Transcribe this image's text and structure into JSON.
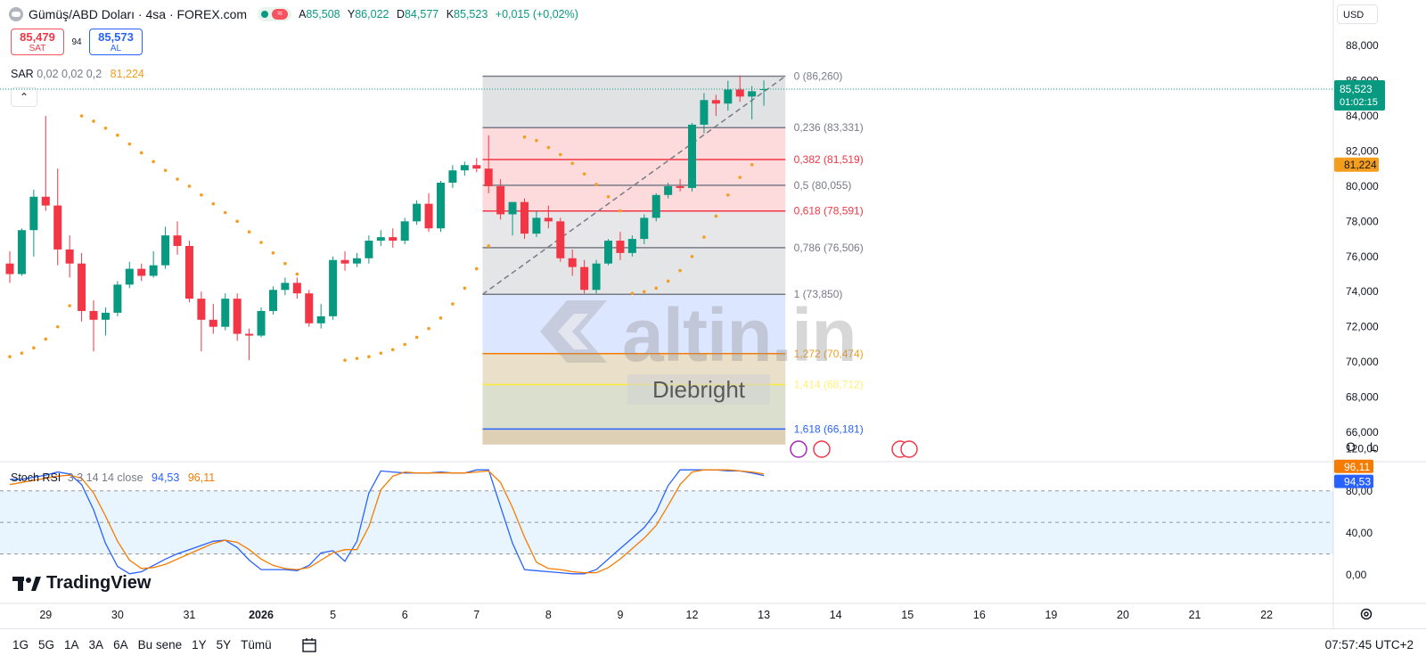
{
  "header": {
    "symbol_title": "Gümüş/ABD Doları · 4sa · FOREX.com",
    "ohlc": [
      {
        "key": "A",
        "value": "85,508"
      },
      {
        "key": "Y",
        "value": "86,022"
      },
      {
        "key": "D",
        "value": "84,577"
      },
      {
        "key": "K",
        "value": "85,523"
      }
    ],
    "change": "+0,015 (+0,02%)"
  },
  "trade": {
    "sell_price": "85,479",
    "sell_label": "SAT",
    "spread": "94",
    "buy_price": "85,573",
    "buy_label": "AL"
  },
  "sar_legend": {
    "label": "SAR",
    "params": "0,02 0,02 0,2",
    "value": "81,224"
  },
  "stoch_legend": {
    "label": "Stoch RSI",
    "params": "3 3 14 14 close",
    "k_value": "94,53",
    "d_value": "96,11"
  },
  "currency": "USD",
  "scale_buttons": {
    "o": "O",
    "l": "L"
  },
  "watermark": {
    "site": "altin.in",
    "author": "Diebright"
  },
  "brand": "TradingView",
  "time_ranges": [
    "1G",
    "5G",
    "1A",
    "3A",
    "6A",
    "Bu sene",
    "1Y",
    "5Y",
    "Tümü"
  ],
  "clock": "07:57:45 UTC+2",
  "colors": {
    "up": "#089981",
    "down": "#f23645",
    "sar": "#f59d1c",
    "stoch_k": "#2962ff",
    "stoch_d": "#f57c00"
  },
  "chart_data": {
    "type": "candlestick",
    "ylim": [
      65,
      89
    ],
    "y_ticks": [
      "66,000",
      "68,000",
      "70,000",
      "72,000",
      "74,000",
      "76,000",
      "78,000",
      "80,000",
      "82,000",
      "84,000",
      "86,000",
      "88,000"
    ],
    "x_labels": [
      {
        "label": "29",
        "bar": 3
      },
      {
        "label": "30",
        "bar": 9
      },
      {
        "label": "31",
        "bar": 15
      },
      {
        "label": "2026",
        "bar": 21
      },
      {
        "label": "5",
        "bar": 27
      },
      {
        "label": "6",
        "bar": 33
      },
      {
        "label": "7",
        "bar": 39
      },
      {
        "label": "8",
        "bar": 45
      },
      {
        "label": "9",
        "bar": 51
      },
      {
        "label": "12",
        "bar": 57
      },
      {
        "label": "13",
        "bar": 63
      },
      {
        "label": "14",
        "bar": 69
      },
      {
        "label": "15",
        "bar": 75
      },
      {
        "label": "16",
        "bar": 81
      },
      {
        "label": "19",
        "bar": 87
      },
      {
        "label": "20",
        "bar": 93
      },
      {
        "label": "21",
        "bar": 99
      },
      {
        "label": "22",
        "bar": 105
      }
    ],
    "candles": [
      [
        75.6,
        76.3,
        74.5,
        75.0
      ],
      [
        75.0,
        77.6,
        74.9,
        77.5
      ],
      [
        77.5,
        79.8,
        76.0,
        79.4
      ],
      [
        79.4,
        84.0,
        78.6,
        78.9
      ],
      [
        78.9,
        81.0,
        75.5,
        76.4
      ],
      [
        76.4,
        77.2,
        74.8,
        75.6
      ],
      [
        75.6,
        76.2,
        72.3,
        72.9
      ],
      [
        72.9,
        73.5,
        70.6,
        72.4
      ],
      [
        72.4,
        73.1,
        71.5,
        72.8
      ],
      [
        72.8,
        74.6,
        72.6,
        74.4
      ],
      [
        74.4,
        75.7,
        74.2,
        75.3
      ],
      [
        75.3,
        75.6,
        74.6,
        74.9
      ],
      [
        74.9,
        76.3,
        74.8,
        75.5
      ],
      [
        75.5,
        77.7,
        75.3,
        77.2
      ],
      [
        77.2,
        78.0,
        76.1,
        76.6
      ],
      [
        76.6,
        76.9,
        73.4,
        73.6
      ],
      [
        73.6,
        74.0,
        70.6,
        72.4
      ],
      [
        72.4,
        73.3,
        71.6,
        72.0
      ],
      [
        72.0,
        73.9,
        71.8,
        73.6
      ],
      [
        73.6,
        73.9,
        71.2,
        71.6
      ],
      [
        71.6,
        71.9,
        70.1,
        71.5
      ],
      [
        71.5,
        73.1,
        71.4,
        72.9
      ],
      [
        72.9,
        74.3,
        72.7,
        74.1
      ],
      [
        74.1,
        74.8,
        73.8,
        74.5
      ],
      [
        74.5,
        74.8,
        73.6,
        73.9
      ],
      [
        73.9,
        74.1,
        72.0,
        72.2
      ],
      [
        72.2,
        73.3,
        71.9,
        72.6
      ],
      [
        72.6,
        76.0,
        72.4,
        75.8
      ],
      [
        75.8,
        76.3,
        75.2,
        75.6
      ],
      [
        75.6,
        76.2,
        75.4,
        75.9
      ],
      [
        75.9,
        77.2,
        75.6,
        76.9
      ],
      [
        76.9,
        77.5,
        76.6,
        77.1
      ],
      [
        77.1,
        77.6,
        76.5,
        76.9
      ],
      [
        76.9,
        78.2,
        76.7,
        78.0
      ],
      [
        78.0,
        79.2,
        77.8,
        79.0
      ],
      [
        79.0,
        79.6,
        77.4,
        77.6
      ],
      [
        77.6,
        80.3,
        77.4,
        80.2
      ],
      [
        80.2,
        81.2,
        79.9,
        80.9
      ],
      [
        80.9,
        81.4,
        80.6,
        81.2
      ],
      [
        81.2,
        81.6,
        80.8,
        81.0
      ],
      [
        81.0,
        82.9,
        79.6,
        80.0
      ],
      [
        80.0,
        80.4,
        78.1,
        78.4
      ],
      [
        78.4,
        79.1,
        77.2,
        79.1
      ],
      [
        79.1,
        79.3,
        77.0,
        77.3
      ],
      [
        77.3,
        78.6,
        77.1,
        78.2
      ],
      [
        78.2,
        78.9,
        77.6,
        78.0
      ],
      [
        78.0,
        78.2,
        75.7,
        75.9
      ],
      [
        75.9,
        76.4,
        74.9,
        75.4
      ],
      [
        75.4,
        75.8,
        73.9,
        74.1
      ],
      [
        74.1,
        75.8,
        73.9,
        75.6
      ],
      [
        75.6,
        77.0,
        75.5,
        76.9
      ],
      [
        76.9,
        77.4,
        75.8,
        76.2
      ],
      [
        76.2,
        77.2,
        76.0,
        77.0
      ],
      [
        77.0,
        78.4,
        76.7,
        78.2
      ],
      [
        78.2,
        79.6,
        78.0,
        79.5
      ],
      [
        79.5,
        80.2,
        79.3,
        80.0
      ],
      [
        80.0,
        80.4,
        79.7,
        79.9
      ],
      [
        79.9,
        83.6,
        79.7,
        83.5
      ],
      [
        83.5,
        85.3,
        83.0,
        84.9
      ],
      [
        84.9,
        85.2,
        84.0,
        84.7
      ],
      [
        84.7,
        86.0,
        84.3,
        85.5
      ],
      [
        85.5,
        86.3,
        84.8,
        85.1
      ],
      [
        85.1,
        85.7,
        83.8,
        85.4
      ],
      [
        85.508,
        86.022,
        84.577,
        85.523
      ]
    ],
    "last_price": "85,523",
    "countdown": "01:02:15",
    "sar": {
      "segments": [
        {
          "start_bar": 0,
          "values": [
            70.3,
            70.5,
            70.8,
            71.3,
            72.0,
            73.2
          ]
        },
        {
          "start_bar": 6,
          "values": [
            84.0,
            83.7,
            83.3,
            82.9,
            82.4,
            81.9,
            81.4,
            80.9,
            80.4,
            80.0,
            79.5,
            79.0,
            78.5,
            78.0,
            77.4,
            76.8,
            76.2,
            75.6,
            75.0
          ]
        },
        {
          "start_bar": 28,
          "values": [
            70.1,
            70.2,
            70.3,
            70.5,
            70.7,
            71.0,
            71.4,
            71.9,
            72.5,
            73.3,
            74.2,
            75.3,
            76.6
          ]
        },
        {
          "start_bar": 43,
          "values": [
            82.8,
            82.6,
            82.2,
            81.8,
            81.3,
            80.7,
            80.1,
            79.4,
            78.6
          ]
        },
        {
          "start_bar": 52,
          "values": [
            73.9,
            74.0,
            74.2,
            74.6,
            75.2,
            76.0,
            77.1,
            78.3,
            79.5,
            80.5,
            81.224
          ]
        }
      ],
      "last_value": "81,224"
    },
    "fibonacci": {
      "start_bar": 39.5,
      "end_bar": 64.8,
      "label_bar": 65.5,
      "trend_from": {
        "bar": 39.5,
        "value": 73.85
      },
      "trend_to": {
        "bar": 64.8,
        "value": 86.26
      },
      "levels": [
        {
          "ratio": "0",
          "value": 86.26,
          "label": "0 (86,260)",
          "line": "#787b86",
          "fill": "rgba(120,123,134,0.22)",
          "text": "#787b86"
        },
        {
          "ratio": "0.236",
          "value": 83.331,
          "label": "0,236 (83,331)",
          "line": "#787b86",
          "fill": "rgba(242,54,69,0.18)",
          "text": "#787b86"
        },
        {
          "ratio": "0.382",
          "value": 81.519,
          "label": "0,382 (81,519)",
          "line": "#f23645",
          "fill": "rgba(242,54,69,0.18)",
          "text": "#f23645"
        },
        {
          "ratio": "0.5",
          "value": 80.055,
          "label": "0,5 (80,055)",
          "line": "#787b86",
          "fill": "rgba(242,54,69,0.18)",
          "text": "#787b86"
        },
        {
          "ratio": "0.618",
          "value": 78.591,
          "label": "0,618 (78,591)",
          "line": "#f23645",
          "fill": "rgba(120,123,134,0.18)",
          "text": "#f23645"
        },
        {
          "ratio": "0.786",
          "value": 76.506,
          "label": "0,786 (76,506)",
          "line": "#787b86",
          "fill": "rgba(120,123,134,0.2)",
          "text": "#787b86"
        },
        {
          "ratio": "1",
          "value": 73.85,
          "label": "1 (73,850)",
          "line": "#787b86",
          "fill": "rgba(41,98,255,0.16)",
          "text": "#787b86"
        },
        {
          "ratio": "1.272",
          "value": 70.474,
          "label": "1,272 (70,474)",
          "line": "#f57c00",
          "fill": "rgba(180,140,60,0.28)",
          "text": "#f59d1c"
        },
        {
          "ratio": "1.414",
          "value": 68.712,
          "label": "1,414 (68,712)",
          "line": "#ffeb3b",
          "fill": "rgba(140,160,100,0.32)",
          "text": "#fff176"
        },
        {
          "ratio": "1.618",
          "value": 66.181,
          "label": "1,618 (66,181)",
          "line": "#2962ff",
          "fill": "rgba(180,150,90,0.45)",
          "text": "#2962ff"
        }
      ],
      "bottom_value": 65.3
    },
    "stoch_rsi": {
      "y_ticks": [
        "0,00",
        "40,00",
        "80,00",
        "120,00"
      ],
      "band": [
        20,
        80
      ],
      "k": [
        91,
        91,
        93,
        95,
        98,
        96,
        86,
        62,
        30,
        8,
        1,
        3,
        9,
        15,
        20,
        24,
        28,
        32,
        33,
        26,
        14,
        5,
        5,
        5,
        4,
        9,
        21,
        23,
        13,
        32,
        78,
        99,
        98,
        97,
        97,
        97,
        98,
        97,
        97,
        100,
        100,
        65,
        30,
        5,
        4,
        3,
        2,
        1,
        1,
        5,
        15,
        25,
        35,
        45,
        60,
        85,
        100,
        100,
        100,
        100,
        99,
        99,
        97,
        94.53
      ],
      "d": [
        86,
        88,
        90,
        92,
        94,
        95,
        92,
        78,
        56,
        32,
        14,
        6,
        7,
        10,
        15,
        20,
        25,
        30,
        33,
        31,
        24,
        15,
        9,
        6,
        5,
        7,
        14,
        21,
        24,
        24,
        46,
        81,
        94,
        98,
        97,
        97,
        97,
        97,
        97,
        98,
        99,
        88,
        64,
        36,
        12,
        6,
        5,
        3,
        2,
        2,
        7,
        15,
        25,
        35,
        47,
        66,
        86,
        98,
        100,
        100,
        100,
        99,
        98,
        96.11
      ],
      "last_k": "94,53",
      "last_d": "96,11"
    }
  }
}
